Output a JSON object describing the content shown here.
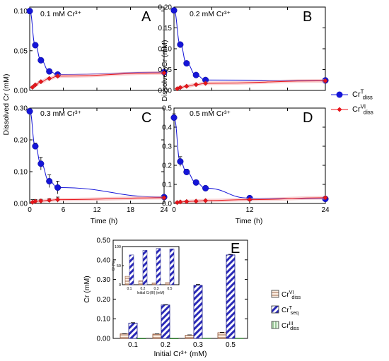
{
  "chart_data": [
    {
      "type": "line",
      "panel": "A",
      "title": "0.1 mM Cr³⁺",
      "xlim": [
        0,
        24
      ],
      "ylim": [
        0,
        0.105
      ],
      "xticks": [],
      "yticks": [
        "0.00",
        "0.05",
        "0.10"
      ],
      "ytick_values": [
        0,
        0.05,
        0.1
      ],
      "series": [
        {
          "color": "#1515d8",
          "marker": "circle",
          "x": [
            0,
            1,
            2,
            3.5,
            5,
            24
          ],
          "y": [
            0.1,
            0.057,
            0.038,
            0.024,
            0.02,
            0.023
          ],
          "err": [
            0.003,
            0.002,
            0.002,
            0.001,
            0.001,
            0.001
          ]
        },
        {
          "color": "#e8151b",
          "marker": "diamond",
          "x": [
            0.5,
            1,
            2,
            3.5,
            5,
            24
          ],
          "y": [
            0.004,
            0.007,
            0.011,
            0.015,
            0.018,
            0.022
          ],
          "err": [
            0,
            0,
            0,
            0,
            0,
            0
          ]
        }
      ]
    },
    {
      "type": "line",
      "panel": "B",
      "title": "0.2 mM Cr³⁺",
      "xlim": [
        0,
        24
      ],
      "ylim": [
        0,
        0.2
      ],
      "xticks": [],
      "yticks": [
        "0.00",
        "0.05",
        "0.10",
        "0.15",
        "0.20"
      ],
      "ytick_values": [
        0,
        0.05,
        0.1,
        0.15,
        0.2
      ],
      "series": [
        {
          "color": "#1515d8",
          "marker": "circle",
          "x": [
            0,
            1,
            2,
            3.5,
            5,
            24
          ],
          "y": [
            0.192,
            0.11,
            0.065,
            0.037,
            0.025,
            0.024
          ],
          "err": [
            0.004,
            0.004,
            0.005,
            0.005,
            0.003,
            0.002
          ]
        },
        {
          "color": "#e8151b",
          "marker": "diamond",
          "x": [
            0.5,
            1,
            2,
            3.5,
            5,
            24
          ],
          "y": [
            0.004,
            0.007,
            0.01,
            0.014,
            0.017,
            0.023
          ],
          "err": [
            0,
            0,
            0,
            0,
            0,
            0
          ]
        }
      ]
    },
    {
      "type": "line",
      "panel": "C",
      "title": "0.3 mM Cr³⁺",
      "xlim": [
        0,
        24
      ],
      "ylim": [
        0,
        0.3
      ],
      "xticks": [
        "0",
        "6",
        "12",
        "18",
        "24"
      ],
      "xtick_values": [
        0,
        6,
        12,
        18,
        24
      ],
      "yticks": [
        "0.00",
        "0.10",
        "0.20",
        "0.30"
      ],
      "ytick_values": [
        0,
        0.1,
        0.2,
        0.3
      ],
      "series": [
        {
          "color": "#1515d8",
          "marker": "circle",
          "x": [
            0,
            1,
            2,
            3.5,
            5,
            24
          ],
          "y": [
            0.29,
            0.18,
            0.125,
            0.07,
            0.05,
            0.02
          ],
          "err": [
            0.008,
            0.01,
            0.02,
            0.02,
            0.02,
            0.003
          ]
        },
        {
          "color": "#e8151b",
          "marker": "diamond",
          "x": [
            0.5,
            1,
            2,
            3.5,
            5,
            24
          ],
          "y": [
            0.004,
            0.007,
            0.008,
            0.01,
            0.012,
            0.018
          ],
          "err": [
            0.008,
            0.005,
            0.005,
            0.005,
            0.008,
            0.005
          ]
        }
      ]
    },
    {
      "type": "line",
      "panel": "D",
      "title": "0.5 mM Cr³⁺",
      "xlim": [
        0,
        24
      ],
      "ylim": [
        0,
        0.5
      ],
      "xticks": [
        "0",
        "12",
        "24"
      ],
      "xtick_values": [
        0,
        12,
        24
      ],
      "yticks": [
        "0.0",
        "0.1",
        "0.2",
        "0.3",
        "0.4",
        "0.5"
      ],
      "ytick_values": [
        0,
        0.1,
        0.2,
        0.3,
        0.4,
        0.5
      ],
      "series": [
        {
          "color": "#1515d8",
          "marker": "circle",
          "x": [
            0,
            1,
            2,
            3.5,
            5,
            12,
            24
          ],
          "y": [
            0.45,
            0.22,
            0.165,
            0.11,
            0.08,
            0.028,
            0.024
          ],
          "err": [
            0.02,
            0.025,
            0.015,
            0.008,
            0.005,
            0.003,
            0.003
          ]
        },
        {
          "color": "#e8151b",
          "marker": "diamond",
          "x": [
            0.5,
            1,
            2,
            3.5,
            5,
            12,
            24
          ],
          "y": [
            0.005,
            0.008,
            0.01,
            0.012,
            0.015,
            0.02,
            0.03
          ],
          "err": [
            0,
            0,
            0,
            0,
            0,
            0,
            0
          ]
        }
      ]
    },
    {
      "type": "bar",
      "panel": "E",
      "categories": [
        "0.1",
        "0.2",
        "0.3",
        "0.5"
      ],
      "ylim": [
        0,
        0.5
      ],
      "yticks": [
        "0.00",
        "0.10",
        "0.20",
        "0.30",
        "0.40",
        "0.50"
      ],
      "ytick_values": [
        0,
        0.1,
        0.2,
        0.3,
        0.4,
        0.5
      ],
      "xlabel": "Initial Cr³⁺ (mM)",
      "ylabel": "Cr (mM)",
      "series": [
        {
          "legend_key": "vi",
          "fill": "#f6dcc6",
          "stroke": "#8a4a2a",
          "values": [
            0.023,
            0.022,
            0.016,
            0.029
          ],
          "err": [
            0.001,
            0.001,
            0.002,
            0.002
          ]
        },
        {
          "legend_key": "t",
          "fill": "#2a2ab8",
          "stroke": "#1a1a8a",
          "values": [
            0.078,
            0.17,
            0.27,
            0.425
          ],
          "err": [
            0.002,
            0.002,
            0.005,
            0.003
          ]
        },
        {
          "legend_key": "iii",
          "fill": "#c8ecc4",
          "stroke": "#2a7a2a",
          "values": [
            0.0,
            0.0,
            0.001,
            0.001
          ],
          "err": [
            0,
            0,
            0,
            0
          ]
        }
      ],
      "inset": {
        "ylim": [
          0,
          100
        ],
        "yticks": [
          "0",
          "50",
          "100"
        ],
        "ytick_values": [
          0,
          50,
          100
        ],
        "xlabel": "Initial Cr(III) (mM)",
        "ylabel": "Cr (%)",
        "categories": [
          "0.1",
          "0.2",
          "0.3",
          "0.5"
        ],
        "values_vi": [
          22,
          10,
          5,
          6
        ],
        "values_t": [
          78,
          90,
          95,
          94
        ]
      }
    }
  ],
  "shared": {
    "ylabel_top": "Dissolved Cr (mM)",
    "ylabel_right": "Dissolved Cr (mM)",
    "xlabel": "Time  (h)",
    "legend_top": [
      {
        "base": "Cr",
        "sup": "T",
        "sub": "diss",
        "color": "#1515d8",
        "marker": "circle"
      },
      {
        "base": "Cr",
        "sup": "VI",
        "sub": "diss",
        "color": "#e8151b",
        "marker": "diamond"
      }
    ],
    "legend_e": [
      {
        "key": "vi",
        "base": "Cr",
        "sup": "VI",
        "sub": "diss"
      },
      {
        "key": "t",
        "base": "Cr",
        "sup": "T",
        "sub": "seq"
      },
      {
        "key": "iii",
        "base": "Cr",
        "sup": "III",
        "sub": "diss"
      }
    ]
  }
}
